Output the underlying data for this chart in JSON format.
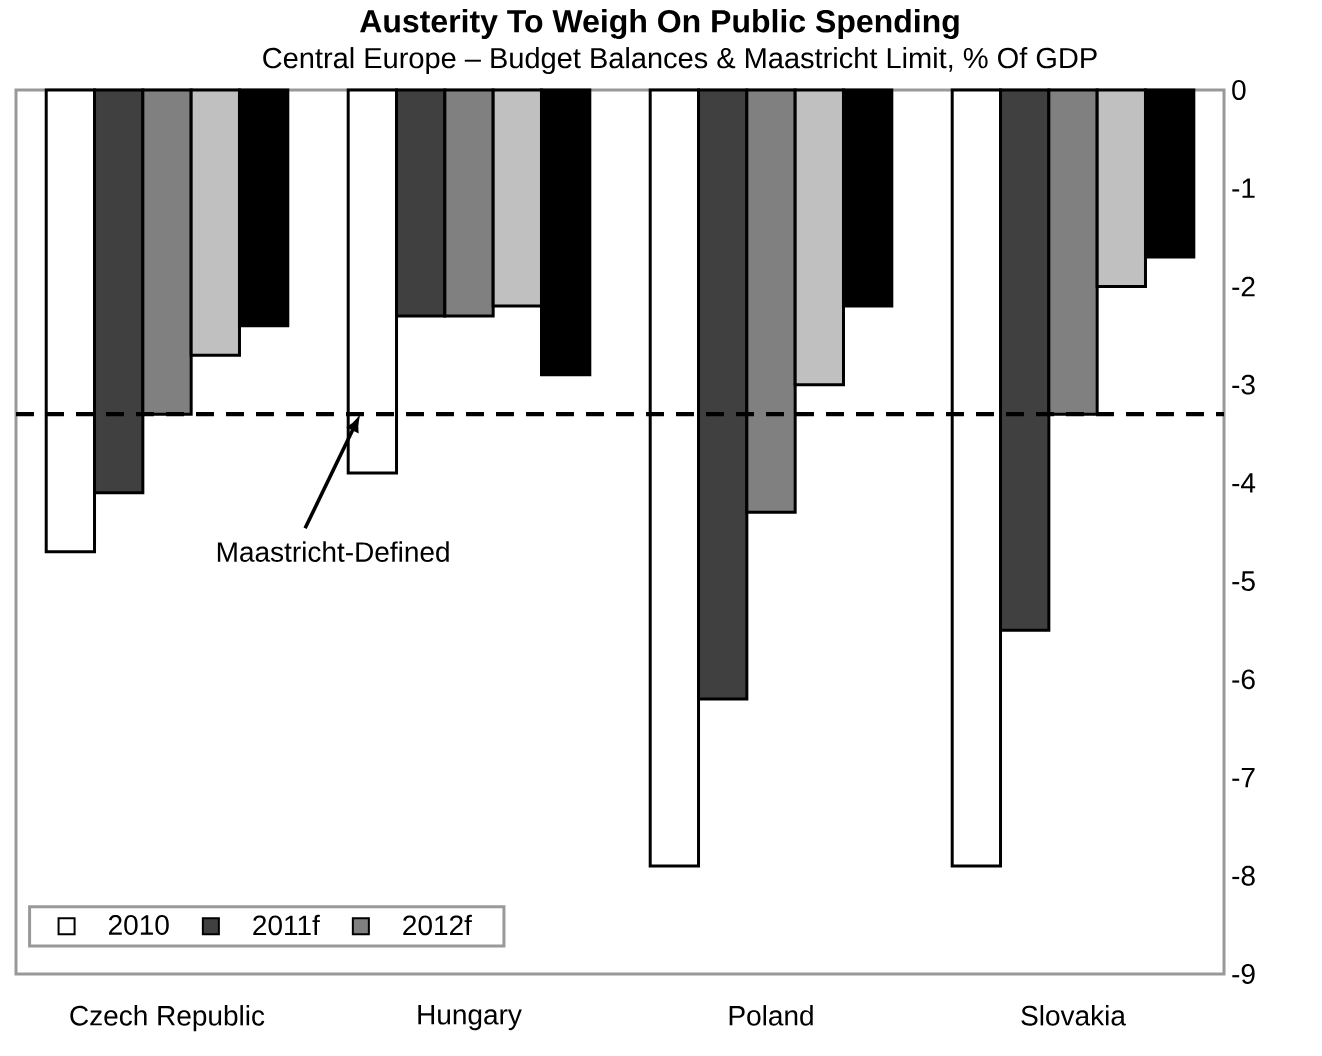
{
  "chart_data": {
    "type": "bar",
    "title": "Austerity To Weigh On Public Spending",
    "subtitle": "Central Europe – Budget Balances & Maastricht Limit, % Of GDP",
    "categories": [
      "Czech Republic",
      "Hungary",
      "Poland",
      "Slovakia"
    ],
    "series": [
      {
        "name": "2010",
        "color": "#ffffff",
        "values": [
          -4.7,
          -3.9,
          -7.9,
          -7.9
        ]
      },
      {
        "name": "2011f",
        "color": "#404040",
        "values": [
          -4.1,
          -2.3,
          -6.2,
          -5.5
        ]
      },
      {
        "name": "2012f",
        "color": "#808080",
        "values": [
          -3.3,
          -2.3,
          -4.3,
          -3.3
        ]
      },
      {
        "color": "#c0c0c0",
        "values": [
          -2.7,
          -2.2,
          -3.0,
          -2.0
        ]
      },
      {
        "color": "#000000",
        "values": [
          -2.4,
          -2.9,
          -2.2,
          -1.7
        ]
      }
    ],
    "ylim": [
      -9,
      0
    ],
    "yticks": [
      -9,
      -8,
      -7,
      -6,
      -5,
      -4,
      -3,
      -2,
      -1,
      0
    ],
    "ref_lines": [
      {
        "axis": "y",
        "value": -3.3,
        "label": "Maastricht-Defined",
        "color": "#000000",
        "line_style": "dashed"
      }
    ],
    "grid": false,
    "legend": "bottom left"
  }
}
